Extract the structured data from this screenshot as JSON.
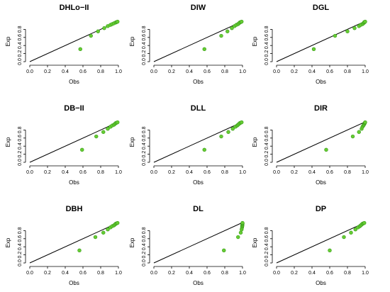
{
  "colors": {
    "point_fill": "#66cc33",
    "point_stroke": "#3a9e1a",
    "line": "#000000",
    "axis": "#000000"
  },
  "chart_data": [
    {
      "type": "scatter",
      "title": "DHLo−II",
      "xlabel": "Obs",
      "ylabel": "Exp",
      "xlim": [
        0,
        1
      ],
      "ylim": [
        0,
        1
      ],
      "x_ticks": [
        "0.0",
        "0.2",
        "0.4",
        "0.6",
        "0.8",
        "1.0"
      ],
      "y_ticks": [
        "0.0",
        "0.2",
        "0.4",
        "0.6",
        "0.8"
      ],
      "reference_line": "y = x",
      "points": [
        [
          0.57,
          0.31
        ],
        [
          0.69,
          0.64
        ],
        [
          0.77,
          0.75
        ],
        [
          0.84,
          0.83
        ],
        [
          0.88,
          0.88
        ],
        [
          0.91,
          0.91
        ],
        [
          0.93,
          0.93
        ],
        [
          0.95,
          0.95
        ],
        [
          0.97,
          0.97
        ],
        [
          0.98,
          0.98
        ],
        [
          0.99,
          0.99
        ]
      ]
    },
    {
      "type": "scatter",
      "title": "DIW",
      "xlabel": "Obs",
      "ylabel": "Exp",
      "xlim": [
        0,
        1
      ],
      "ylim": [
        0,
        1
      ],
      "x_ticks": [
        "0.0",
        "0.2",
        "0.4",
        "0.6",
        "0.8",
        "1.0"
      ],
      "y_ticks": [
        "0.0",
        "0.2",
        "0.4",
        "0.6",
        "0.8"
      ],
      "reference_line": "y = x",
      "points": [
        [
          0.57,
          0.31
        ],
        [
          0.76,
          0.64
        ],
        [
          0.83,
          0.75
        ],
        [
          0.88,
          0.83
        ],
        [
          0.91,
          0.88
        ],
        [
          0.93,
          0.91
        ],
        [
          0.95,
          0.93
        ],
        [
          0.96,
          0.95
        ],
        [
          0.97,
          0.97
        ],
        [
          0.98,
          0.98
        ],
        [
          0.99,
          0.99
        ]
      ]
    },
    {
      "type": "scatter",
      "title": "DGL",
      "xlabel": "Obs",
      "ylabel": "Exp",
      "xlim": [
        0,
        1
      ],
      "ylim": [
        0,
        1
      ],
      "x_ticks": [
        "0.0",
        "0.2",
        "0.4",
        "0.6",
        "0.8",
        "1.0"
      ],
      "y_ticks": [
        "0.0",
        "0.2",
        "0.4",
        "0.6",
        "0.8"
      ],
      "reference_line": "y = x",
      "points": [
        [
          0.42,
          0.31
        ],
        [
          0.66,
          0.64
        ],
        [
          0.8,
          0.75
        ],
        [
          0.88,
          0.83
        ],
        [
          0.93,
          0.88
        ],
        [
          0.95,
          0.91
        ],
        [
          0.97,
          0.93
        ],
        [
          0.98,
          0.95
        ],
        [
          0.99,
          0.97
        ],
        [
          0.99,
          0.98
        ],
        [
          1.0,
          0.99
        ]
      ]
    },
    {
      "type": "scatter",
      "title": "DB−II",
      "xlabel": "Obs",
      "ylabel": "Exp",
      "xlim": [
        0,
        1
      ],
      "ylim": [
        0,
        1
      ],
      "x_ticks": [
        "0.0",
        "0.2",
        "0.4",
        "0.6",
        "0.8",
        "1.0"
      ],
      "y_ticks": [
        "0.0",
        "0.2",
        "0.4",
        "0.6",
        "0.8"
      ],
      "reference_line": "y = x",
      "points": [
        [
          0.59,
          0.31
        ],
        [
          0.75,
          0.64
        ],
        [
          0.83,
          0.75
        ],
        [
          0.88,
          0.83
        ],
        [
          0.91,
          0.88
        ],
        [
          0.93,
          0.91
        ],
        [
          0.95,
          0.93
        ],
        [
          0.96,
          0.95
        ],
        [
          0.97,
          0.97
        ],
        [
          0.98,
          0.98
        ],
        [
          0.99,
          0.99
        ]
      ]
    },
    {
      "type": "scatter",
      "title": "DLL",
      "xlabel": "Obs",
      "ylabel": "Exp",
      "xlim": [
        0,
        1
      ],
      "ylim": [
        0,
        1
      ],
      "x_ticks": [
        "0.0",
        "0.2",
        "0.4",
        "0.6",
        "0.8",
        "1.0"
      ],
      "y_ticks": [
        "0.0",
        "0.2",
        "0.4",
        "0.6",
        "0.8"
      ],
      "reference_line": "y = x",
      "points": [
        [
          0.57,
          0.31
        ],
        [
          0.76,
          0.64
        ],
        [
          0.84,
          0.75
        ],
        [
          0.89,
          0.83
        ],
        [
          0.92,
          0.88
        ],
        [
          0.94,
          0.91
        ],
        [
          0.95,
          0.93
        ],
        [
          0.96,
          0.95
        ],
        [
          0.97,
          0.97
        ],
        [
          0.98,
          0.98
        ],
        [
          0.99,
          0.99
        ]
      ]
    },
    {
      "type": "scatter",
      "title": "DIR",
      "xlabel": "Obs",
      "ylabel": "Exp",
      "xlim": [
        0,
        1
      ],
      "ylim": [
        0,
        1
      ],
      "x_ticks": [
        "0.0",
        "0.2",
        "0.4",
        "0.6",
        "0.8",
        "1.0"
      ],
      "y_ticks": [
        "0.0",
        "0.2",
        "0.4",
        "0.6",
        "0.8"
      ],
      "reference_line": "y = x",
      "points": [
        [
          0.56,
          0.31
        ],
        [
          0.86,
          0.64
        ],
        [
          0.93,
          0.75
        ],
        [
          0.96,
          0.83
        ],
        [
          0.97,
          0.88
        ],
        [
          0.98,
          0.91
        ],
        [
          0.985,
          0.93
        ],
        [
          0.99,
          0.95
        ],
        [
          0.995,
          0.97
        ],
        [
          0.997,
          0.98
        ],
        [
          1.0,
          0.99
        ]
      ]
    },
    {
      "type": "scatter",
      "title": "DBH",
      "xlabel": "Obs",
      "ylabel": "Exp",
      "xlim": [
        0,
        1
      ],
      "ylim": [
        0,
        1
      ],
      "x_ticks": [
        "0.0",
        "0.2",
        "0.4",
        "0.6",
        "0.8",
        "1.0"
      ],
      "y_ticks": [
        "0.0",
        "0.2",
        "0.4",
        "0.6",
        "0.8"
      ],
      "reference_line": "y = x",
      "points": [
        [
          0.56,
          0.31
        ],
        [
          0.74,
          0.64
        ],
        [
          0.83,
          0.75
        ],
        [
          0.88,
          0.83
        ],
        [
          0.91,
          0.88
        ],
        [
          0.93,
          0.91
        ],
        [
          0.95,
          0.93
        ],
        [
          0.96,
          0.95
        ],
        [
          0.97,
          0.97
        ],
        [
          0.98,
          0.98
        ],
        [
          0.99,
          0.99
        ]
      ]
    },
    {
      "type": "scatter",
      "title": "DL",
      "xlabel": "Obs",
      "ylabel": "Exp",
      "xlim": [
        0,
        1
      ],
      "ylim": [
        0,
        1
      ],
      "x_ticks": [
        "0.0",
        "0.2",
        "0.4",
        "0.6",
        "0.8",
        "1.0"
      ],
      "y_ticks": [
        "0.0",
        "0.2",
        "0.4",
        "0.6",
        "0.8"
      ],
      "reference_line": "y = x",
      "points": [
        [
          0.79,
          0.31
        ],
        [
          0.95,
          0.64
        ],
        [
          0.98,
          0.75
        ],
        [
          0.99,
          0.83
        ],
        [
          0.995,
          0.88
        ],
        [
          0.997,
          0.91
        ],
        [
          0.998,
          0.93
        ],
        [
          0.999,
          0.95
        ],
        [
          1.0,
          0.97
        ],
        [
          1.0,
          0.98
        ],
        [
          1.0,
          0.99
        ]
      ]
    },
    {
      "type": "scatter",
      "title": "DP",
      "xlabel": "Obs",
      "ylabel": "Exp",
      "xlim": [
        0,
        1
      ],
      "ylim": [
        0,
        1
      ],
      "x_ticks": [
        "0.0",
        "0.2",
        "0.4",
        "0.6",
        "0.8",
        "1.0"
      ],
      "y_ticks": [
        "0.0",
        "0.2",
        "0.4",
        "0.6",
        "0.8"
      ],
      "reference_line": "y = x",
      "points": [
        [
          0.6,
          0.31
        ],
        [
          0.76,
          0.64
        ],
        [
          0.84,
          0.75
        ],
        [
          0.89,
          0.83
        ],
        [
          0.92,
          0.88
        ],
        [
          0.94,
          0.91
        ],
        [
          0.95,
          0.93
        ],
        [
          0.96,
          0.95
        ],
        [
          0.97,
          0.97
        ],
        [
          0.98,
          0.98
        ],
        [
          0.99,
          0.99
        ]
      ]
    }
  ]
}
